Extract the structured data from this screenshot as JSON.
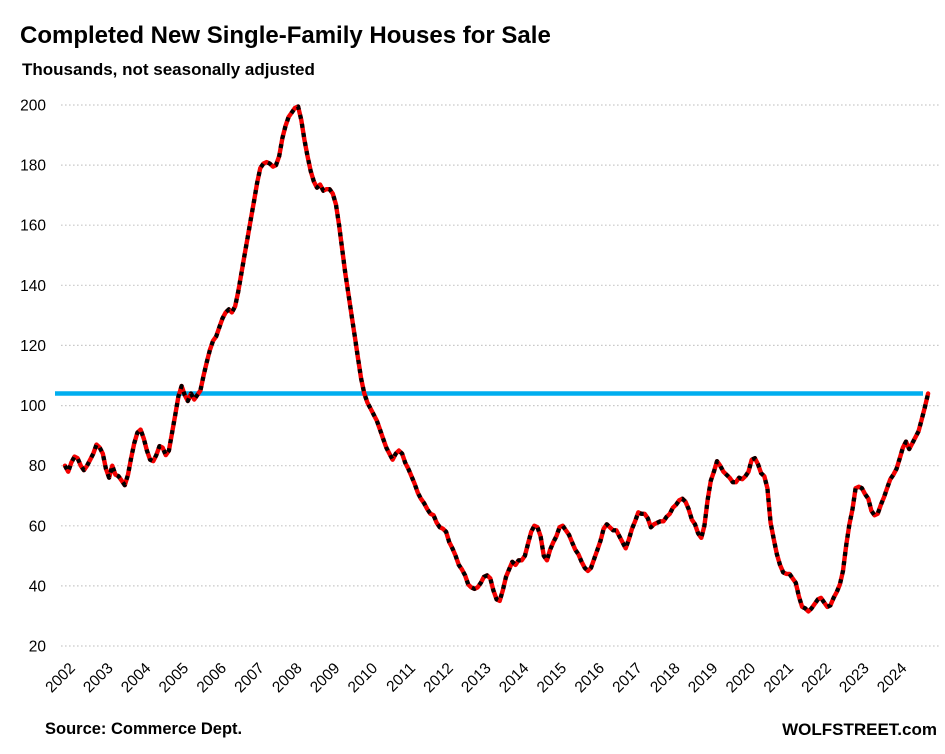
{
  "chart_data": {
    "type": "line",
    "title": "Completed New Single-Family Houses for Sale",
    "subtitle": "Thousands, not seasonally adjusted",
    "ylabel": "Thousands",
    "ylim": [
      20,
      200
    ],
    "y_ticks": [
      200,
      180,
      160,
      140,
      120,
      100,
      80,
      60,
      40,
      20
    ],
    "x_tick_years": [
      "2002",
      "2003",
      "2004",
      "2005",
      "2006",
      "2007",
      "2008",
      "2009",
      "2010",
      "2011",
      "2012",
      "2013",
      "2014",
      "2015",
      "2016",
      "2017",
      "2018",
      "2019",
      "2020",
      "2021",
      "2022",
      "2023",
      "2024"
    ],
    "grid": "horizontal-dotted",
    "legend": "none",
    "reference_line": {
      "value": 104,
      "color": "#00AEEF"
    },
    "series": [
      {
        "color": "#F40000",
        "marker_color": "#000000",
        "start": "2002-01",
        "frequency": "monthly",
        "values": [
          80,
          78,
          81,
          83,
          82.5,
          80,
          78.5,
          80,
          82,
          84,
          87,
          86,
          84,
          79,
          76,
          80,
          77,
          76.5,
          75,
          73.5,
          77,
          82.5,
          87.5,
          91,
          92,
          89,
          85,
          82,
          81.5,
          83.5,
          86.5,
          86,
          83.5,
          85,
          91,
          97,
          103,
          106.5,
          103.5,
          101.5,
          104,
          102,
          103.5,
          105,
          110,
          114.5,
          118.5,
          121.5,
          123,
          126,
          129,
          131,
          132,
          131,
          133,
          138,
          144,
          150,
          156,
          162,
          168,
          174,
          179,
          180.5,
          181,
          180.5,
          179.5,
          180,
          183,
          189,
          193,
          196,
          197.5,
          199,
          199.5,
          195,
          188.5,
          183,
          178,
          174.5,
          172.5,
          173.5,
          171.5,
          172,
          172,
          170.5,
          167,
          160,
          152,
          144,
          137,
          130,
          123,
          116,
          109,
          104,
          101,
          99,
          97,
          95,
          92,
          89,
          86,
          84,
          82,
          84,
          85,
          84,
          81,
          79,
          76.5,
          74,
          71,
          69,
          67.5,
          65.5,
          64,
          63.5,
          61,
          59.5,
          59,
          58,
          54.5,
          52.5,
          50,
          47,
          45.5,
          43.5,
          40.5,
          39.5,
          39,
          39.5,
          41,
          43,
          43.5,
          42.5,
          38.5,
          35.5,
          35,
          38.5,
          43,
          45.5,
          48,
          47,
          48.5,
          48.5,
          50,
          54,
          58,
          60,
          59.5,
          56.5,
          50,
          48.5,
          52,
          54.5,
          56.5,
          59.5,
          60,
          58.5,
          57,
          54.5,
          52,
          50.5,
          48,
          46,
          45,
          46,
          49,
          52,
          55,
          59,
          60.5,
          59.5,
          58.5,
          58.5,
          56.5,
          54.5,
          52.5,
          55.5,
          59,
          61.5,
          64.5,
          64,
          64,
          62.5,
          59.5,
          60.5,
          61,
          61.5,
          61.5,
          63,
          64,
          66,
          67,
          68.5,
          69,
          68,
          65.5,
          62,
          60.5,
          57.5,
          56,
          60,
          68.5,
          75,
          78,
          81.5,
          80,
          78,
          77,
          76,
          74.5,
          74.5,
          76,
          75.5,
          76.5,
          78,
          82,
          82.5,
          80.5,
          77.5,
          76.5,
          72.5,
          61,
          55.5,
          50.5,
          47,
          44.5,
          44,
          44,
          42.5,
          41,
          36.5,
          33,
          32.5,
          31.5,
          32.5,
          34,
          35.5,
          36,
          34.5,
          33,
          33.5,
          36,
          38,
          40.5,
          45,
          53.5,
          60.5,
          65.5,
          72.5,
          73,
          72.5,
          70.5,
          69,
          65,
          63.5,
          64,
          67,
          69.5,
          72.5,
          75.5,
          77,
          79,
          82.5,
          86,
          88,
          85.5,
          87.5,
          89.5,
          91.5,
          95.5,
          99.5,
          104
        ]
      }
    ]
  },
  "footer": {
    "source": "Source: Commerce Dept.",
    "brand": "WOLFSTREET.com"
  }
}
